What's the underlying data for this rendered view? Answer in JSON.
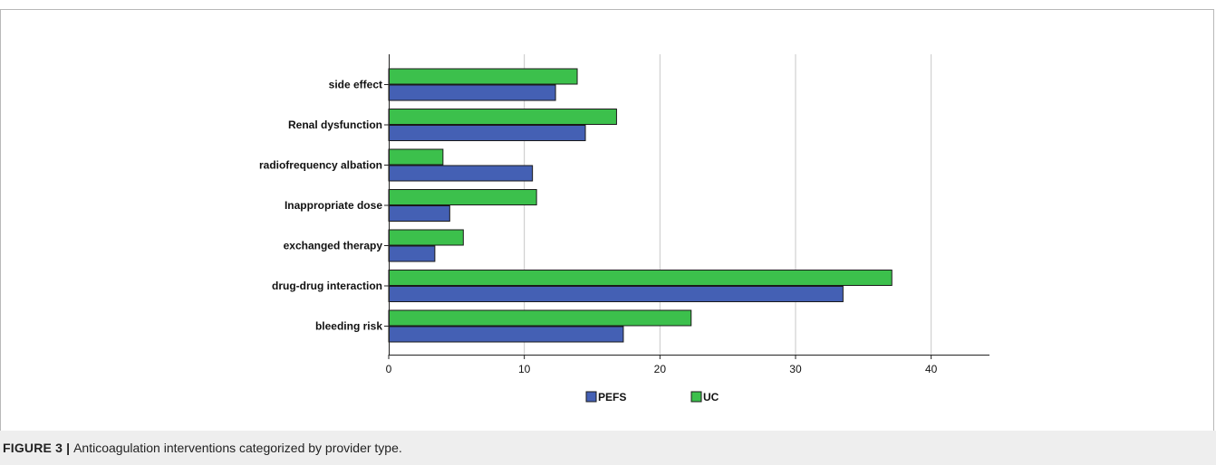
{
  "chart_data": {
    "type": "bar",
    "orientation": "horizontal",
    "categories": [
      "side effect",
      "Renal dysfunction",
      "radiofrequency albation",
      "Inappropriate dose",
      "exchanged therapy",
      "drug-drug interaction",
      "bleeding risk"
    ],
    "series": [
      {
        "name": "PEFS",
        "color": "#4460b4",
        "values": [
          12.3,
          14.5,
          10.6,
          4.5,
          3.4,
          33.5,
          17.3
        ]
      },
      {
        "name": "UC",
        "color": "#3cc04c",
        "values": [
          13.9,
          16.8,
          4.0,
          10.9,
          5.5,
          37.1,
          22.3
        ]
      }
    ],
    "xlim": [
      0,
      44.3
    ],
    "xticks": [
      0,
      10,
      20,
      30,
      40
    ],
    "grid": "vertical",
    "legend_position": "bottom-center",
    "title": "",
    "xlabel": "",
    "ylabel": ""
  },
  "caption": {
    "label": "FIGURE 3",
    "separator": "|",
    "text": "Anticoagulation interventions categorized by provider type."
  }
}
